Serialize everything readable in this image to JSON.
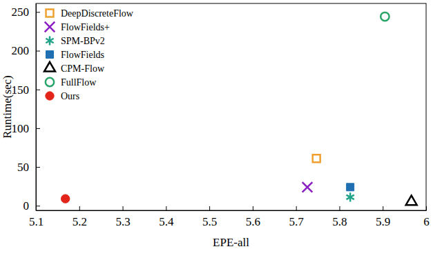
{
  "chart_data": {
    "type": "scatter",
    "x_label": "EPE-all",
    "y_label": "Runtime(sec)",
    "xlim": [
      5.1,
      6.0
    ],
    "ylim": [
      -6,
      261
    ],
    "xticks": [
      5.1,
      5.2,
      5.3,
      5.4,
      5.5,
      5.6,
      5.7,
      5.8,
      5.9,
      6
    ],
    "yticks": [
      0,
      50,
      100,
      150,
      200,
      250
    ],
    "legend": "upper-left",
    "series": [
      {
        "name": "DeepDiscreteFlow",
        "color": "#f0a030",
        "marker": "square-open",
        "x": [
          5.747
        ],
        "values": [
          61
        ]
      },
      {
        "name": "FlowFields+",
        "color": "#8b1ec4",
        "marker": "x",
        "x": [
          5.726
        ],
        "values": [
          24
        ]
      },
      {
        "name": "SPM-BPv2",
        "color": "#21a38a",
        "marker": "asterisk",
        "x": [
          5.825
        ],
        "values": [
          11
        ]
      },
      {
        "name": "FlowFields",
        "color": "#1f6fb2",
        "marker": "square",
        "x": [
          5.825
        ],
        "values": [
          24
        ]
      },
      {
        "name": "CPM-Flow",
        "color": "#000000",
        "marker": "triangle-open",
        "x": [
          5.966
        ],
        "values": [
          5
        ]
      },
      {
        "name": "FullFlow",
        "color": "#2aa56a",
        "marker": "circle-open",
        "x": [
          5.905
        ],
        "values": [
          244
        ]
      },
      {
        "name": "Ours",
        "color": "#e3241b",
        "marker": "circle",
        "x": [
          5.168
        ],
        "values": [
          9
        ]
      }
    ]
  }
}
